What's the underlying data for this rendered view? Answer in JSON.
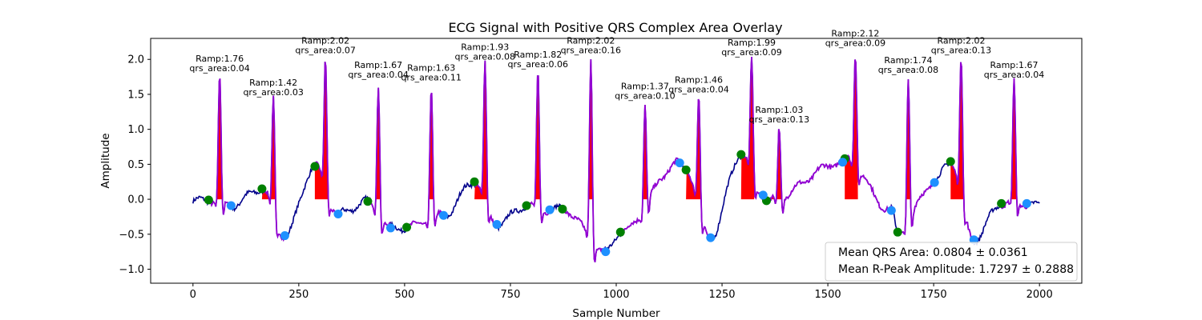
{
  "chart_data": {
    "type": "line",
    "title": "ECG Signal with Positive QRS Complex Area Overlay",
    "xlabel": "Sample Number",
    "ylabel": "Amplitude",
    "xlim": [
      -100,
      2100
    ],
    "ylim": [
      -1.2,
      2.3
    ],
    "xticks": [
      0,
      250,
      500,
      750,
      1000,
      1250,
      1500,
      1750,
      2000
    ],
    "yticks": [
      -1.0,
      -0.5,
      0.0,
      0.5,
      1.0,
      1.5,
      2.0
    ],
    "ytick_labels": [
      "−1.0",
      "−0.5",
      "0.0",
      "0.5",
      "1.0",
      "1.5",
      "2.0"
    ],
    "colors": {
      "signal": "#00008b",
      "qrs_segment": "#9400d3",
      "area_fill": "#ff0000",
      "onset_marker": "#008000",
      "offset_marker": "#1e90ff"
    },
    "r_peaks": [
      {
        "x": 63,
        "y": 1.76,
        "ramp": "1.76",
        "qrs_area": "0.04"
      },
      {
        "x": 190,
        "y": 1.42,
        "ramp": "1.42",
        "qrs_area": "0.03"
      },
      {
        "x": 313,
        "y": 2.02,
        "ramp": "2.02",
        "qrs_area": "0.07"
      },
      {
        "x": 438,
        "y": 1.67,
        "ramp": "1.67",
        "qrs_area": "0.04"
      },
      {
        "x": 563,
        "y": 1.63,
        "ramp": "1.63",
        "qrs_area": "0.11"
      },
      {
        "x": 690,
        "y": 1.93,
        "ramp": "1.93",
        "qrs_area": "0.08"
      },
      {
        "x": 815,
        "y": 1.82,
        "ramp": "1.82",
        "qrs_area": "0.06"
      },
      {
        "x": 940,
        "y": 2.02,
        "ramp": "2.02",
        "qrs_area": "0.16"
      },
      {
        "x": 1068,
        "y": 1.37,
        "ramp": "1.37",
        "qrs_area": "0.10"
      },
      {
        "x": 1195,
        "y": 1.46,
        "ramp": "1.46",
        "qrs_area": "0.04"
      },
      {
        "x": 1320,
        "y": 1.99,
        "ramp": "1.99",
        "qrs_area": "0.09"
      },
      {
        "x": 1385,
        "y": 1.03,
        "ramp": "1.03",
        "qrs_area": "0.13"
      },
      {
        "x": 1565,
        "y": 2.12,
        "ramp": "2.12",
        "qrs_area": "0.09"
      },
      {
        "x": 1690,
        "y": 1.74,
        "ramp": "1.74",
        "qrs_area": "0.08"
      },
      {
        "x": 1815,
        "y": 2.02,
        "ramp": "2.02",
        "qrs_area": "0.13"
      },
      {
        "x": 1940,
        "y": 1.67,
        "ramp": "1.67",
        "qrs_area": "0.04"
      }
    ],
    "onset_points": [
      {
        "x": 37,
        "y": -0.01
      },
      {
        "x": 163,
        "y": 0.15
      },
      {
        "x": 288,
        "y": 0.47
      },
      {
        "x": 413,
        "y": -0.03
      },
      {
        "x": 505,
        "y": -0.4
      },
      {
        "x": 665,
        "y": 0.25
      },
      {
        "x": 788,
        "y": -0.09
      },
      {
        "x": 873,
        "y": -0.14
      },
      {
        "x": 1010,
        "y": -0.47
      },
      {
        "x": 1165,
        "y": 0.42
      },
      {
        "x": 1295,
        "y": 0.64
      },
      {
        "x": 1355,
        "y": -0.02
      },
      {
        "x": 1540,
        "y": 0.58
      },
      {
        "x": 1665,
        "y": -0.47
      },
      {
        "x": 1790,
        "y": 0.54
      },
      {
        "x": 1910,
        "y": -0.06
      }
    ],
    "offset_points": [
      {
        "x": 90,
        "y": -0.09
      },
      {
        "x": 217,
        "y": -0.52
      },
      {
        "x": 343,
        "y": -0.21
      },
      {
        "x": 467,
        "y": -0.41
      },
      {
        "x": 592,
        "y": -0.23
      },
      {
        "x": 718,
        "y": -0.36
      },
      {
        "x": 843,
        "y": -0.15
      },
      {
        "x": 975,
        "y": -0.75
      },
      {
        "x": 1150,
        "y": 0.52
      },
      {
        "x": 1223,
        "y": -0.55
      },
      {
        "x": 1347,
        "y": 0.06
      },
      {
        "x": 1535,
        "y": 0.53
      },
      {
        "x": 1650,
        "y": -0.16
      },
      {
        "x": 1752,
        "y": 0.24
      },
      {
        "x": 1845,
        "y": -0.58
      },
      {
        "x": 1970,
        "y": -0.06
      }
    ],
    "legend": {
      "placement": "lower right",
      "entries": [
        "Mean QRS Area: 0.0804 ± 0.0361",
        "Mean R-Peak Amplitude: 1.7297 ± 0.2888"
      ]
    }
  }
}
